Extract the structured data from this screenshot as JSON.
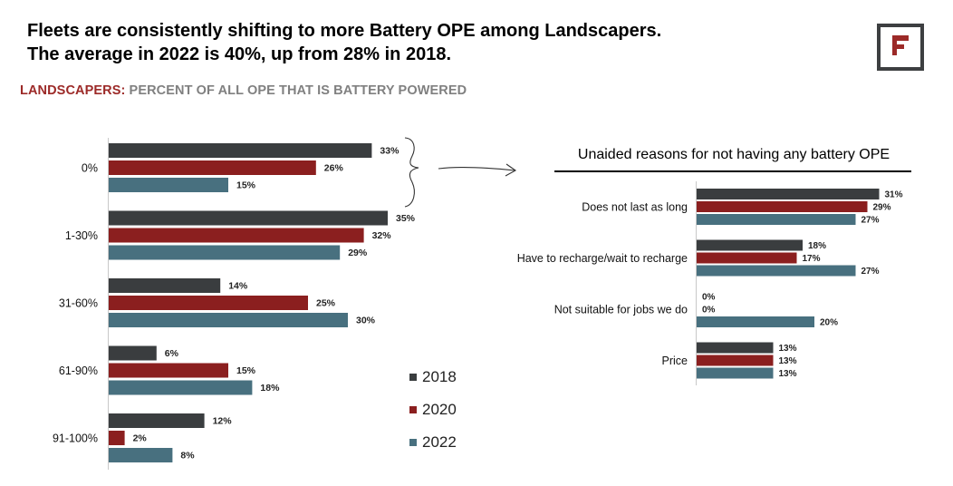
{
  "headline": {
    "line1": "Fleets are consistently shifting to more Battery OPE among Landscapers.",
    "line2": "The average in 2022 is 40%, up from 28% in 2018."
  },
  "subtitle": {
    "prefix": "LANDSCAPERS:",
    "rest": "PERCENT OF ALL OPE THAT IS BATTERY POWERED"
  },
  "logo": {
    "icon": "f-logo-icon"
  },
  "colors": {
    "2018": "#3a3d3f",
    "2020": "#8b1f1f",
    "2022": "#48707f"
  },
  "legend": [
    {
      "label": "2018",
      "color": "#3a3d3f"
    },
    {
      "label": "2020",
      "color": "#8b1f1f"
    },
    {
      "label": "2022",
      "color": "#48707f"
    }
  ],
  "chart_data": [
    {
      "type": "bar",
      "orientation": "horizontal",
      "categories": [
        "0%",
        "1-30%",
        "31-60%",
        "61-90%",
        "91-100%"
      ],
      "series": [
        {
          "name": "2018",
          "values": [
            33,
            35,
            14,
            6,
            12
          ]
        },
        {
          "name": "2020",
          "values": [
            26,
            32,
            25,
            15,
            2
          ]
        },
        {
          "name": "2022",
          "values": [
            15,
            29,
            30,
            18,
            8
          ]
        }
      ],
      "value_suffix": "%",
      "legend_position": "right"
    },
    {
      "type": "bar",
      "orientation": "horizontal",
      "title": "Unaided reasons for not having any battery OPE",
      "categories": [
        "Does not last as long",
        "Have to recharge/wait to recharge",
        "Not suitable for jobs we do",
        "Price"
      ],
      "series": [
        {
          "name": "2018",
          "values": [
            31,
            18,
            0,
            13
          ]
        },
        {
          "name": "2020",
          "values": [
            29,
            17,
            0,
            13
          ]
        },
        {
          "name": "2022",
          "values": [
            27,
            27,
            20,
            13
          ]
        }
      ],
      "value_suffix": "%"
    }
  ]
}
